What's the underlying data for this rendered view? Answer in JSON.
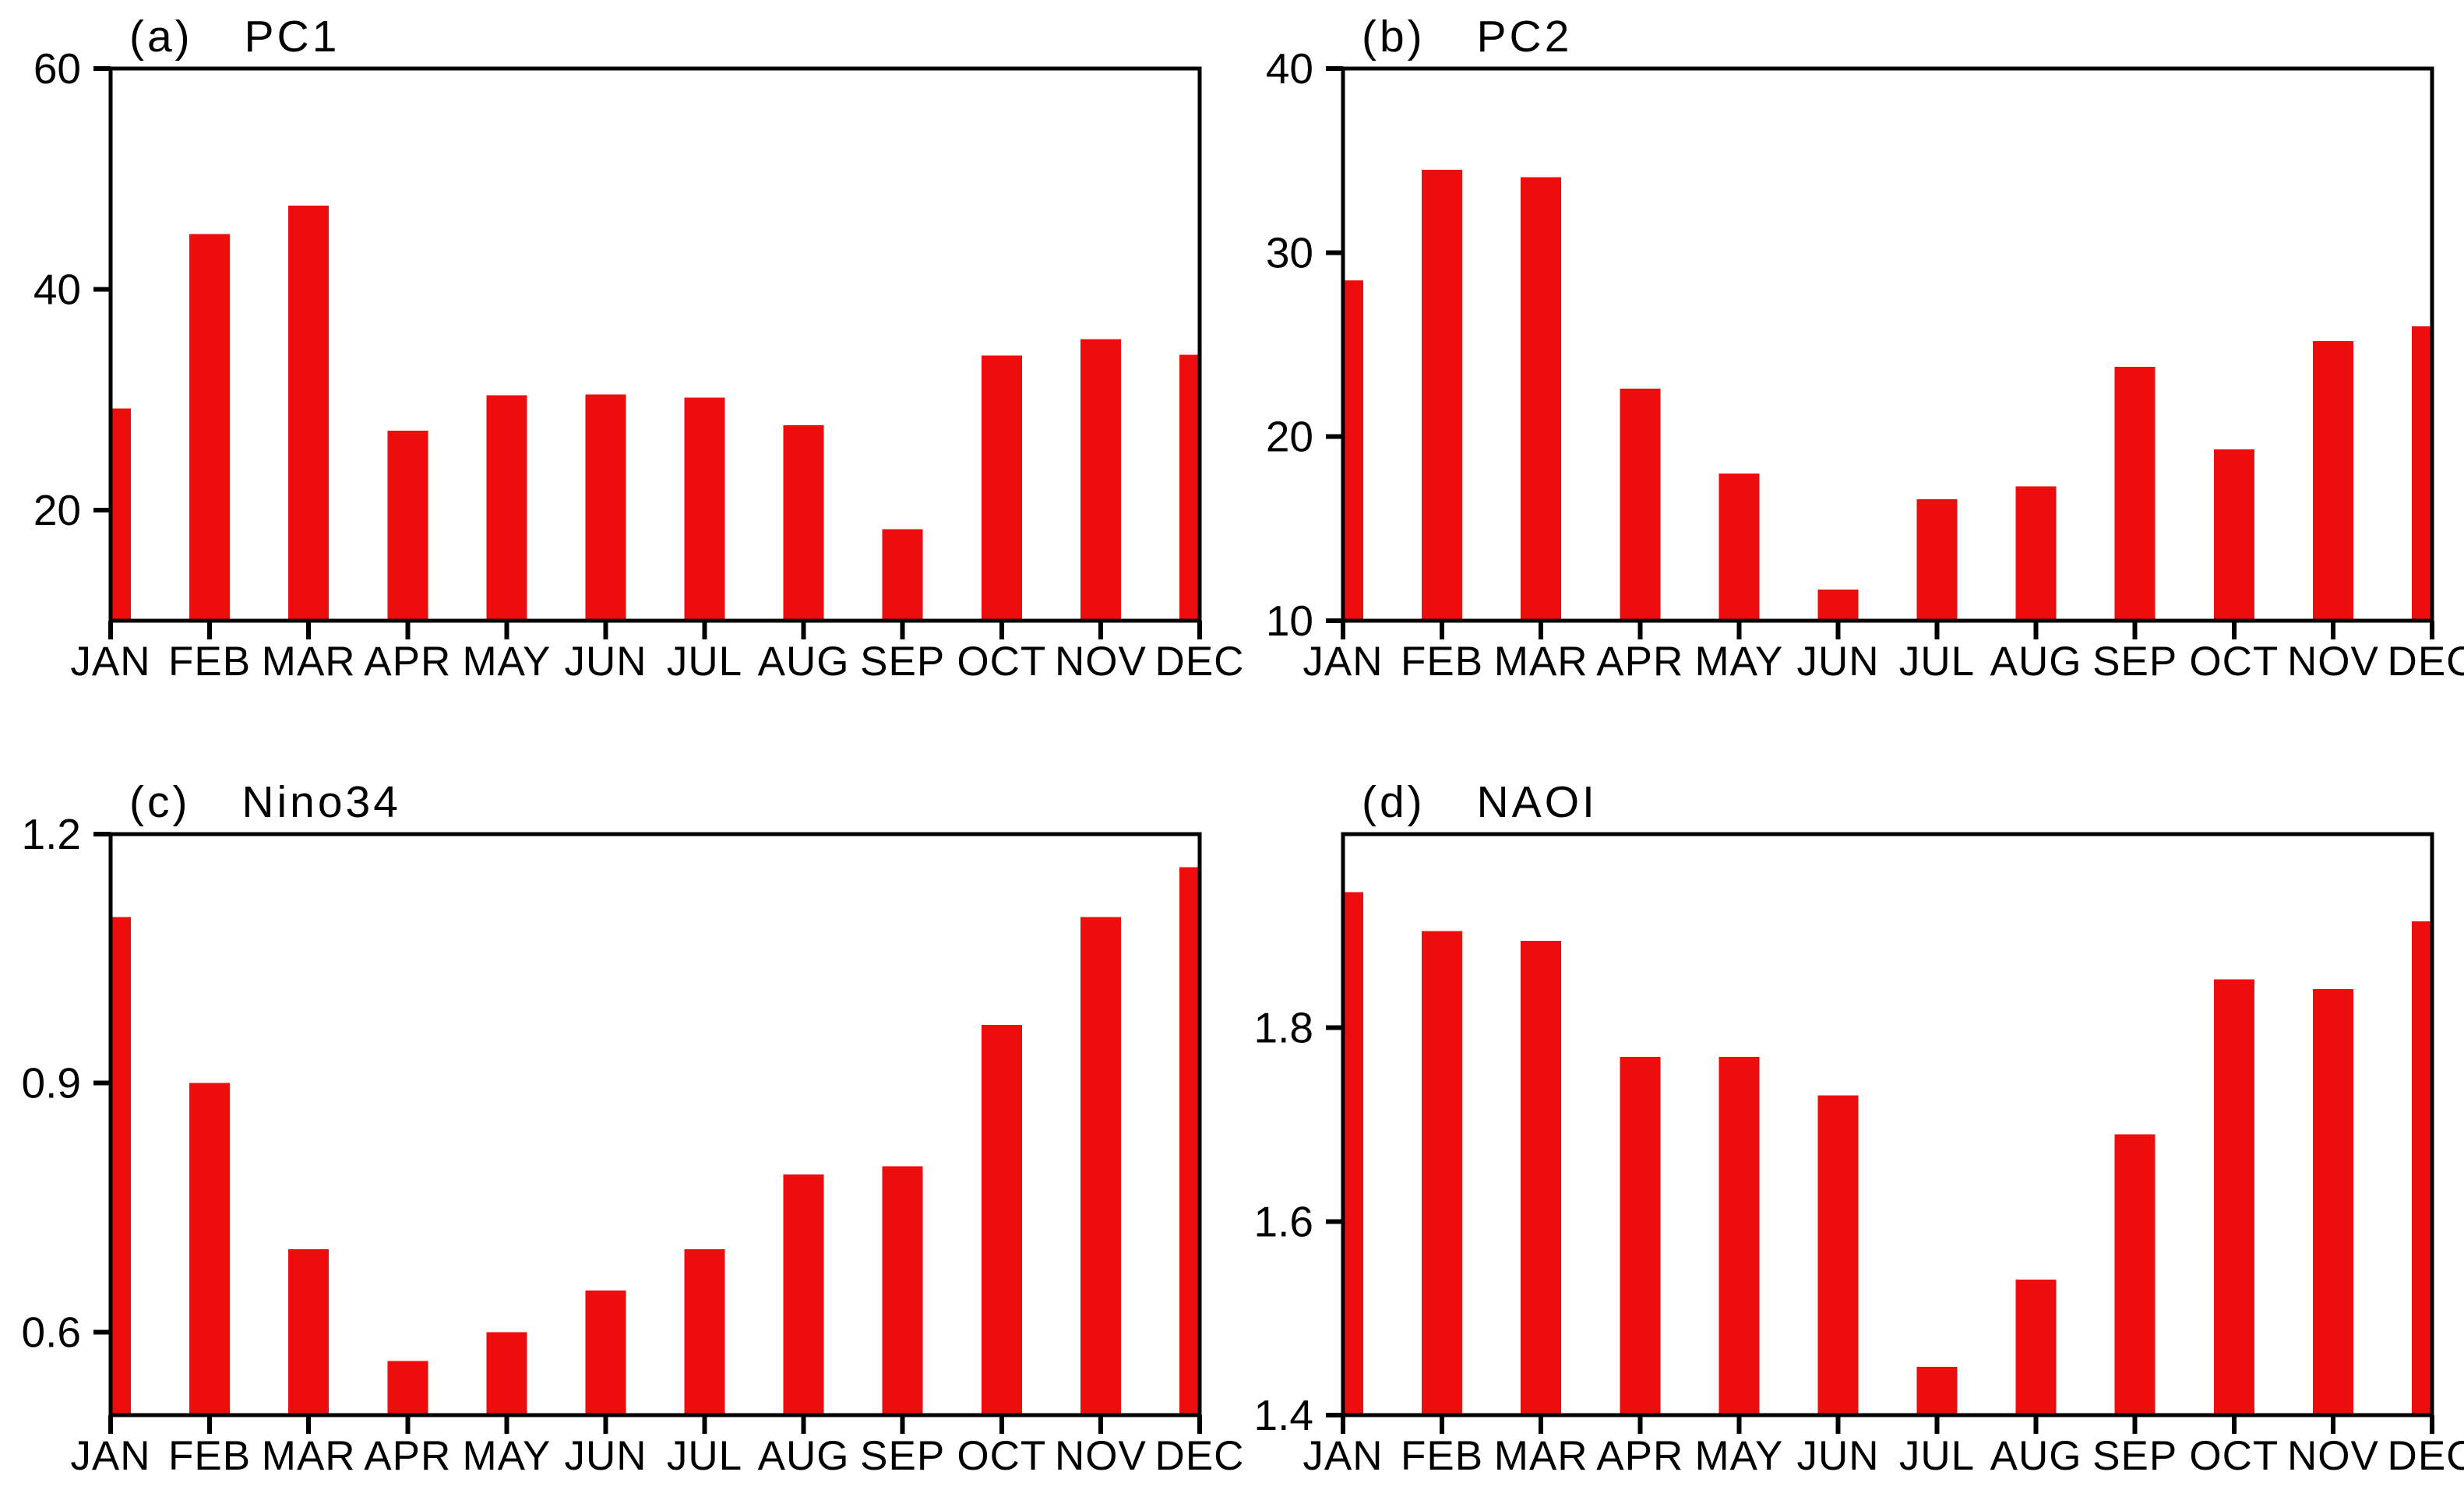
{
  "figure": {
    "background_color": "#ffffff",
    "axis_color": "#000000",
    "bar_color": "#ee0d0d"
  },
  "chart_data": [
    {
      "id": "a",
      "type": "bar",
      "panel_label": "(a)",
      "title": "PC1",
      "categories": [
        "JAN",
        "FEB",
        "MAR",
        "APR",
        "MAY",
        "JUN",
        "JUL",
        "AUG",
        "SEP",
        "OCT",
        "NOV",
        "DEC"
      ],
      "values": [
        29.2,
        45.0,
        47.6,
        27.2,
        30.4,
        30.5,
        30.2,
        27.7,
        18.3,
        34.0,
        35.5,
        34.1
      ],
      "ylim": [
        10,
        60
      ],
      "yticks": [
        20,
        40,
        60
      ],
      "ytick_labels": [
        "20",
        "40",
        "60"
      ],
      "xlabel": "",
      "ylabel": "",
      "grid": false,
      "legend": "none"
    },
    {
      "id": "b",
      "type": "bar",
      "panel_label": "(b)",
      "title": "PC2",
      "categories": [
        "JAN",
        "FEB",
        "MAR",
        "APR",
        "MAY",
        "JUN",
        "JUL",
        "AUG",
        "SEP",
        "OCT",
        "NOV",
        "DEC"
      ],
      "values": [
        28.5,
        34.5,
        34.1,
        22.6,
        18.0,
        11.7,
        16.6,
        17.3,
        23.8,
        19.3,
        25.2,
        26.0
      ],
      "ylim": [
        10,
        40
      ],
      "yticks": [
        10,
        20,
        30,
        40
      ],
      "ytick_labels": [
        "10",
        "20",
        "30",
        "40"
      ],
      "xlabel": "",
      "ylabel": "",
      "grid": false,
      "legend": "none"
    },
    {
      "id": "c",
      "type": "bar",
      "panel_label": "(c)",
      "title": "Nino34",
      "categories": [
        "JAN",
        "FEB",
        "MAR",
        "APR",
        "MAY",
        "JUN",
        "JUL",
        "AUG",
        "SEP",
        "OCT",
        "NOV",
        "DEC"
      ],
      "values": [
        1.1,
        0.9,
        0.7,
        0.565,
        0.6,
        0.65,
        0.7,
        0.79,
        0.8,
        0.97,
        1.1,
        1.16
      ],
      "ylim": [
        0.5,
        1.2
      ],
      "yticks": [
        0.6,
        0.9,
        1.2
      ],
      "ytick_labels": [
        "0.6",
        "0.9",
        "1.2"
      ],
      "xlabel": "",
      "ylabel": "",
      "grid": false,
      "legend": "none"
    },
    {
      "id": "d",
      "type": "bar",
      "panel_label": "(d)",
      "title": "NAOI",
      "categories": [
        "JAN",
        "FEB",
        "MAR",
        "APR",
        "MAY",
        "JUN",
        "JUL",
        "AUG",
        "SEP",
        "OCT",
        "NOV",
        "DEC"
      ],
      "values": [
        1.94,
        1.9,
        1.89,
        1.77,
        1.77,
        1.73,
        1.45,
        1.54,
        1.69,
        1.85,
        1.84,
        1.91
      ],
      "ylim": [
        1.4,
        2.0
      ],
      "yticks": [
        1.4,
        1.6,
        1.8
      ],
      "ytick_labels": [
        "1.4",
        "1.6",
        "1.8"
      ],
      "xlabel": "",
      "ylabel": "",
      "grid": false,
      "legend": "none"
    }
  ]
}
